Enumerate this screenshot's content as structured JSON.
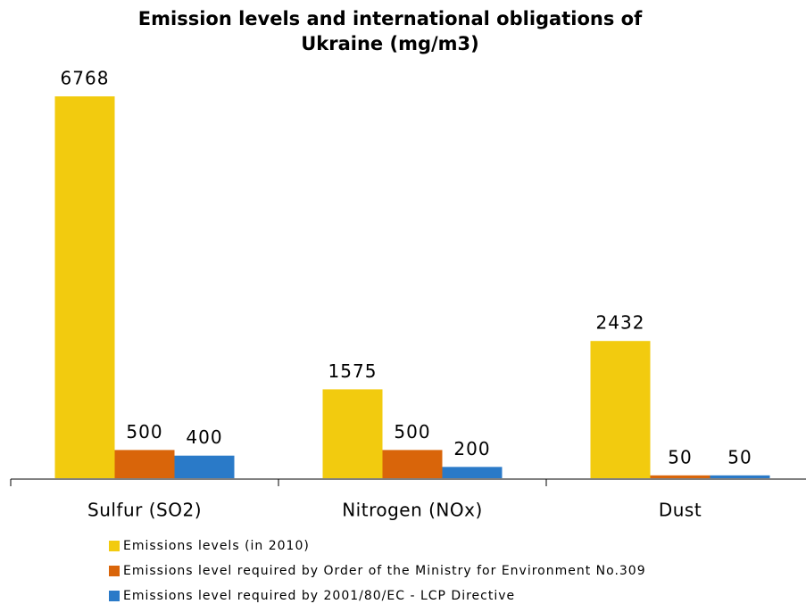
{
  "chart_data": {
    "type": "bar",
    "title": [
      "Emission levels and international obligations of",
      "Ukraine (mg/m3)"
    ],
    "categories": [
      "Sulfur (SO2)",
      "Nitrogen (NOx)",
      "Dust"
    ],
    "series": [
      {
        "name": "Emissions levels (in 2010)",
        "color": "#f2cb0f",
        "values": [
          6768,
          1575,
          2432
        ]
      },
      {
        "name": "Emissions level required by Order of the Ministry for Environment No.309",
        "color": "#d9650a",
        "values": [
          500,
          500,
          50
        ]
      },
      {
        "name": "Emissions level required by 2001/80/EC - LCP Directive",
        "color": "#2a7ac8",
        "values": [
          400,
          200,
          50
        ]
      }
    ]
  }
}
